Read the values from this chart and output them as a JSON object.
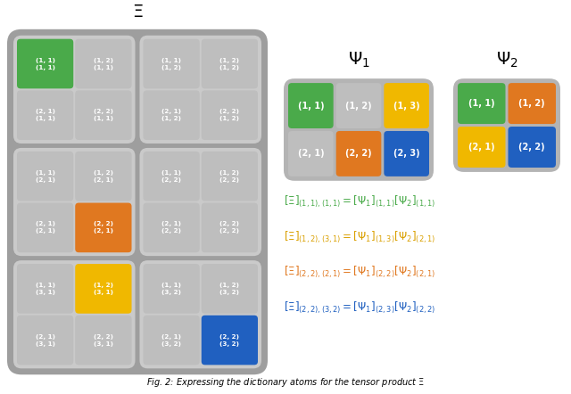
{
  "eq_green": "#4aaa4a",
  "eq_orange": "#e07820",
  "eq_yellow": "#daa000",
  "eq_blue": "#2060c0",
  "Xi_cells": [
    {
      "row": 0,
      "col": 0,
      "block_row": 0,
      "block_col": 0,
      "label": "(1, 1)\n(1, 1)",
      "color": "#4aaa4a"
    },
    {
      "row": 0,
      "col": 1,
      "block_row": 0,
      "block_col": 0,
      "label": "(1, 2)\n(1, 1)",
      "color": null
    },
    {
      "row": 1,
      "col": 0,
      "block_row": 0,
      "block_col": 0,
      "label": "(2, 1)\n(1, 1)",
      "color": null
    },
    {
      "row": 1,
      "col": 1,
      "block_row": 0,
      "block_col": 0,
      "label": "(2, 2)\n(1, 1)",
      "color": null
    },
    {
      "row": 0,
      "col": 0,
      "block_row": 0,
      "block_col": 1,
      "label": "(1, 1)\n(1, 2)",
      "color": null
    },
    {
      "row": 0,
      "col": 1,
      "block_row": 0,
      "block_col": 1,
      "label": "(1, 2)\n(1, 2)",
      "color": null
    },
    {
      "row": 1,
      "col": 0,
      "block_row": 0,
      "block_col": 1,
      "label": "(2, 1)\n(1, 2)",
      "color": null
    },
    {
      "row": 1,
      "col": 1,
      "block_row": 0,
      "block_col": 1,
      "label": "(2, 2)\n(1, 2)",
      "color": null
    },
    {
      "row": 0,
      "col": 0,
      "block_row": 1,
      "block_col": 0,
      "label": "(1, 1)\n(2, 1)",
      "color": null
    },
    {
      "row": 0,
      "col": 1,
      "block_row": 1,
      "block_col": 0,
      "label": "(1, 2)\n(2, 1)",
      "color": null
    },
    {
      "row": 1,
      "col": 0,
      "block_row": 1,
      "block_col": 0,
      "label": "(2, 1)\n(2, 1)",
      "color": null
    },
    {
      "row": 1,
      "col": 1,
      "block_row": 1,
      "block_col": 0,
      "label": "(2, 2)\n(2, 1)",
      "color": "#e07820"
    },
    {
      "row": 0,
      "col": 0,
      "block_row": 1,
      "block_col": 1,
      "label": "(1, 1)\n(2, 2)",
      "color": null
    },
    {
      "row": 0,
      "col": 1,
      "block_row": 1,
      "block_col": 1,
      "label": "(1, 2)\n(2, 2)",
      "color": null
    },
    {
      "row": 1,
      "col": 0,
      "block_row": 1,
      "block_col": 1,
      "label": "(2, 1)\n(2, 2)",
      "color": null
    },
    {
      "row": 1,
      "col": 1,
      "block_row": 1,
      "block_col": 1,
      "label": "(2, 2)\n(2, 2)",
      "color": null
    },
    {
      "row": 0,
      "col": 0,
      "block_row": 2,
      "block_col": 0,
      "label": "(1, 1)\n(3, 1)",
      "color": null
    },
    {
      "row": 0,
      "col": 1,
      "block_row": 2,
      "block_col": 0,
      "label": "(1, 2)\n(3, 1)",
      "color": "#f0b800"
    },
    {
      "row": 1,
      "col": 0,
      "block_row": 2,
      "block_col": 0,
      "label": "(2, 1)\n(3, 1)",
      "color": null
    },
    {
      "row": 1,
      "col": 1,
      "block_row": 2,
      "block_col": 0,
      "label": "(2, 2)\n(3, 1)",
      "color": null
    },
    {
      "row": 0,
      "col": 0,
      "block_row": 2,
      "block_col": 1,
      "label": "(1, 1)\n(3, 2)",
      "color": null
    },
    {
      "row": 0,
      "col": 1,
      "block_row": 2,
      "block_col": 1,
      "label": "(1, 2)\n(3, 2)",
      "color": null
    },
    {
      "row": 1,
      "col": 0,
      "block_row": 2,
      "block_col": 1,
      "label": "(2, 1)\n(3, 2)",
      "color": null
    },
    {
      "row": 1,
      "col": 1,
      "block_row": 2,
      "block_col": 1,
      "label": "(2, 2)\n(3, 2)",
      "color": "#2060c0"
    }
  ],
  "psi1_cells": [
    {
      "row": 0,
      "col": 0,
      "label": "(1, 1)",
      "color": "#4aaa4a"
    },
    {
      "row": 0,
      "col": 1,
      "label": "(1, 2)",
      "color": null
    },
    {
      "row": 0,
      "col": 2,
      "label": "(1, 3)",
      "color": "#f0b800"
    },
    {
      "row": 1,
      "col": 0,
      "label": "(2, 1)",
      "color": null
    },
    {
      "row": 1,
      "col": 1,
      "label": "(2, 2)",
      "color": "#e07820"
    },
    {
      "row": 1,
      "col": 2,
      "label": "(2, 3)",
      "color": "#2060c0"
    }
  ],
  "psi2_cells": [
    {
      "row": 0,
      "col": 0,
      "label": "(1, 1)",
      "color": "#4aaa4a"
    },
    {
      "row": 0,
      "col": 1,
      "label": "(1, 2)",
      "color": "#e07820"
    },
    {
      "row": 1,
      "col": 0,
      "label": "(2, 1)",
      "color": "#f0b800"
    },
    {
      "row": 1,
      "col": 1,
      "label": "(2, 2)",
      "color": "#2060c0"
    }
  ],
  "eq_colors": [
    "#4aaa4a",
    "#daa000",
    "#e07820",
    "#2060c0"
  ]
}
